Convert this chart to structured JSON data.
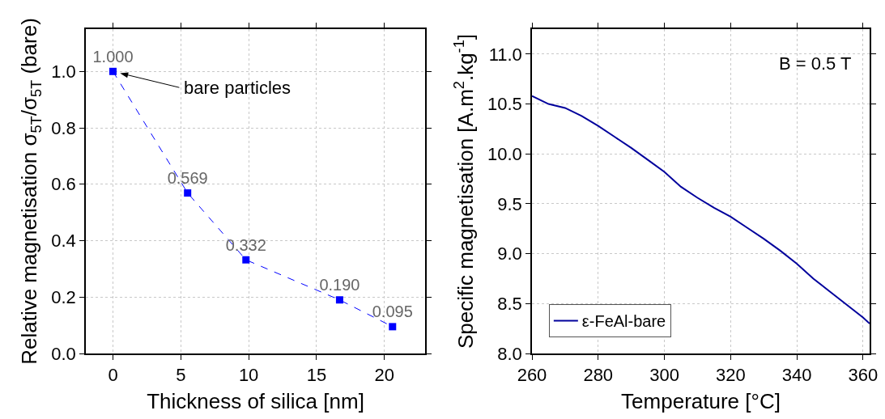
{
  "chart_data": [
    {
      "type": "line",
      "xlabel": "Thickness of silica [nm]",
      "ylabel": "Relative magnetisation σ$_{5T}$/σ$_{5T}$ (bare)",
      "x": [
        0,
        5.5,
        9.8,
        16.7,
        20.6
      ],
      "series": [
        {
          "color": "#0000ff",
          "values": [
            1.0,
            0.569,
            0.332,
            0.19,
            0.095
          ],
          "value_labels": [
            "1.000",
            "0.569",
            "0.332",
            "0.190",
            "0.095"
          ]
        }
      ],
      "xlim": [
        -2,
        23
      ],
      "xticks": [
        0,
        5,
        10,
        15,
        20
      ],
      "ylim": [
        0,
        1.15
      ],
      "yticks": [
        {
          "value": 0,
          "label": "0.0"
        },
        {
          "value": 0.2,
          "label": "0.2"
        },
        {
          "value": 0.4,
          "label": "0.4"
        },
        {
          "value": 0.6,
          "label": "0.6"
        },
        {
          "value": 0.8,
          "label": "0.8"
        },
        {
          "value": 1,
          "label": "1.0"
        }
      ],
      "annotations": [
        "bare particles"
      ],
      "grid": true,
      "legend": false,
      "marker": "square",
      "line_style": "dashed"
    },
    {
      "type": "line",
      "xlabel": "Temperature [°C]",
      "ylabel": "Specific magnetisation [A.m$^{2}$.kg$^{-1}$]",
      "x": [
        260,
        265,
        270,
        275,
        280,
        285,
        290,
        295,
        300,
        305,
        310,
        315,
        320,
        325,
        330,
        335,
        340,
        345,
        350,
        355,
        360,
        362
      ],
      "series": [
        {
          "name": "ε-FeAl-bare",
          "color": "#00009c",
          "values": [
            10.58,
            10.5,
            10.46,
            10.38,
            10.28,
            10.17,
            10.06,
            9.94,
            9.82,
            9.67,
            9.56,
            9.46,
            9.37,
            9.26,
            9.15,
            9.03,
            8.9,
            8.75,
            8.62,
            8.49,
            8.36,
            8.3
          ]
        }
      ],
      "xlim": [
        260,
        362
      ],
      "xticks": [
        260,
        280,
        300,
        320,
        340,
        360
      ],
      "ylim": [
        8,
        11.25
      ],
      "yticks": [
        {
          "value": 8,
          "label": "8.0"
        },
        {
          "value": 8.5,
          "label": "8.5"
        },
        {
          "value": 9,
          "label": "9.0"
        },
        {
          "value": 9.5,
          "label": "9.5"
        },
        {
          "value": 10,
          "label": "10.0"
        },
        {
          "value": 10.5,
          "label": "10.5"
        },
        {
          "value": 11,
          "label": "11.0"
        }
      ],
      "annotations": [
        "B = 0.5 T"
      ],
      "grid": true,
      "legend": "bottom left",
      "marker": "none",
      "line_style": "solid"
    }
  ]
}
